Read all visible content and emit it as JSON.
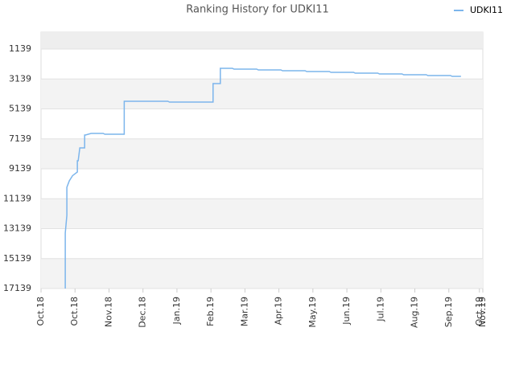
{
  "chart_data": {
    "type": "line",
    "title": "Ranking History for UDKI11",
    "series": [
      {
        "name": "UDKI11",
        "color": "#7cb5ec",
        "x": [
          0.713,
          0.713,
          0.76,
          0.76,
          0.832,
          0.927,
          1.069,
          1.069,
          1.093,
          1.141,
          1.141,
          1.283,
          1.283,
          1.307,
          1.473,
          1.83,
          1.877,
          2.448,
          2.448,
          3.731,
          3.779,
          5.062,
          5.062,
          5.276,
          5.276,
          5.632,
          5.68,
          6.345,
          6.393,
          7.058,
          7.105,
          7.771,
          7.818,
          8.484,
          8.531,
          9.197,
          9.244,
          9.91,
          9.957,
          10.623,
          10.67,
          11.336,
          11.383,
          12.049,
          12.096,
          12.357
        ],
        "values": [
          17139,
          13434,
          12253,
          10374,
          9944,
          9600,
          9354,
          8602,
          8602,
          7743,
          7743,
          7743,
          6884,
          6884,
          6776,
          6776,
          6830,
          6830,
          4629,
          4629,
          4683,
          4683,
          3448,
          3448,
          2428,
          2428,
          2481,
          2481,
          2535,
          2535,
          2589,
          2589,
          2642,
          2642,
          2696,
          2696,
          2750,
          2750,
          2803,
          2803,
          2857,
          2857,
          2911,
          2911,
          2964,
          2964
        ]
      }
    ],
    "ylim": [
      17139,
      11
    ],
    "yticks": [
      1139,
      3139,
      5139,
      7139,
      9139,
      11139,
      13139,
      15139,
      17139
    ],
    "xlim": [
      0,
      13
    ],
    "xticks": [
      {
        "value": 0,
        "label": "Oct.18"
      },
      {
        "value": 1,
        "label": "Oct.18"
      },
      {
        "value": 2,
        "label": "Nov.18"
      },
      {
        "value": 3,
        "label": "Dec.18"
      },
      {
        "value": 4,
        "label": "Jan.19"
      },
      {
        "value": 5,
        "label": "Feb.19"
      },
      {
        "value": 6,
        "label": "Mar.19"
      },
      {
        "value": 7,
        "label": "Apr.19"
      },
      {
        "value": 8,
        "label": "May.19"
      },
      {
        "value": 9,
        "label": "Jun.19"
      },
      {
        "value": 10,
        "label": "Jul.19"
      },
      {
        "value": 11,
        "label": "Aug.19"
      },
      {
        "value": 12,
        "label": "Sep.19"
      },
      {
        "value": 12.9,
        "label": "Oct.19"
      },
      {
        "value": 13,
        "label": "Nov.19"
      }
    ],
    "grid": true,
    "legend": "top-right"
  }
}
